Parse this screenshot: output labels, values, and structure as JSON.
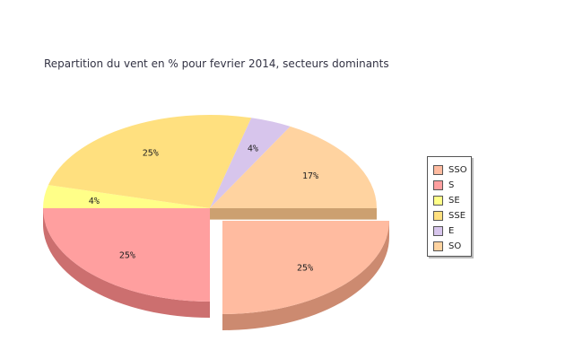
{
  "chart_data": {
    "type": "pie",
    "title": "Repartition du vent en % pour fevrier 2014, secteurs dominants",
    "slices": [
      {
        "name": "SSO",
        "value": 25,
        "label": "25%",
        "color": "#ffbba0",
        "side": "#cc8a70",
        "exploded": true
      },
      {
        "name": "S",
        "value": 25,
        "label": "25%",
        "color": "#ff9f9f",
        "side": "#cc6f6f",
        "exploded": false
      },
      {
        "name": "SE",
        "value": 4,
        "label": "4%",
        "color": "#ffff88",
        "side": "#cccc66",
        "exploded": false
      },
      {
        "name": "SSE",
        "value": 25,
        "label": "25%",
        "color": "#ffe07f",
        "side": "#ccb060",
        "exploded": false
      },
      {
        "name": "E",
        "value": 4,
        "label": "4%",
        "color": "#d7c5ec",
        "side": "#a898bb",
        "exploded": false
      },
      {
        "name": "SO",
        "value": 17,
        "label": "17%",
        "color": "#ffd3a0",
        "side": "#cca070",
        "exploded": false
      }
    ],
    "legend_position": "right"
  }
}
